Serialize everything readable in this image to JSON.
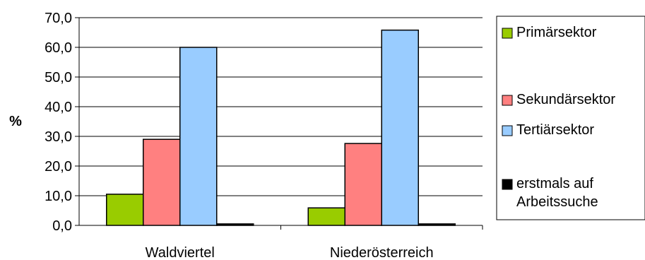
{
  "chart_data": {
    "type": "bar",
    "title": "",
    "xlabel": "",
    "ylabel": "%",
    "ylim": [
      0,
      70
    ],
    "ytick_step": 10,
    "ytick_labels": [
      "0,0",
      "10,0",
      "20,0",
      "30,0",
      "40,0",
      "50,0",
      "60,0",
      "70,0"
    ],
    "grid": true,
    "legend_position": "right",
    "categories": [
      "Waldviertel",
      "Niederösterreich"
    ],
    "series": [
      {
        "name": "Primärsektor",
        "color": "#99cc00",
        "values": [
          10.5,
          5.9
        ]
      },
      {
        "name": "Sekundärsektor",
        "color": "#ff8080",
        "values": [
          29.0,
          27.6
        ]
      },
      {
        "name": "Tertiärsektor",
        "color": "#99ccff",
        "values": [
          60.0,
          65.8
        ]
      },
      {
        "name": "erstmals auf Arbeitssuche",
        "legend_lines": [
          "erstmals auf",
          "Arbeitssuche"
        ],
        "color": "#000000",
        "values": [
          0.5,
          0.5
        ]
      }
    ]
  }
}
